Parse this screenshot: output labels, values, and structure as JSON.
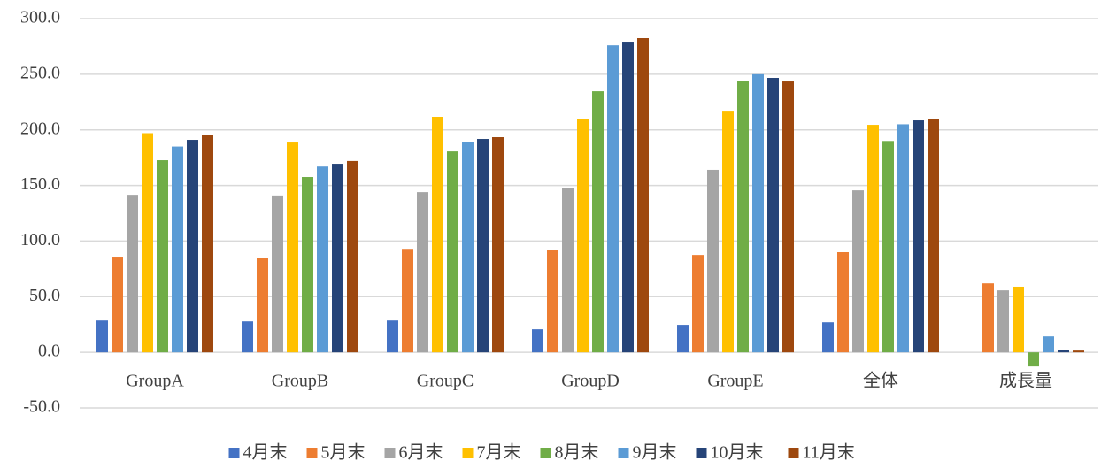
{
  "chart_data": {
    "type": "bar",
    "categories": [
      "GroupA",
      "GroupB",
      "GroupC",
      "GroupD",
      "GroupE",
      "全体",
      "成長量"
    ],
    "series": [
      {
        "name": "4月末",
        "color": "#4472c4",
        "values": [
          28.6,
          27.8,
          28.6,
          20.7,
          24.7,
          27.0,
          null
        ]
      },
      {
        "name": "5月末",
        "color": "#ed7d31",
        "values": [
          86.0,
          85.0,
          93.0,
          92.0,
          87.5,
          90.0,
          62.0
        ]
      },
      {
        "name": "6月末",
        "color": "#a5a5a5",
        "values": [
          141.6,
          141.0,
          144.0,
          148.0,
          164.0,
          145.6,
          55.7
        ]
      },
      {
        "name": "7月末",
        "color": "#ffc000",
        "values": [
          197.0,
          188.6,
          211.7,
          210.0,
          216.4,
          204.5,
          59.0
        ]
      },
      {
        "name": "8月末",
        "color": "#70ad47",
        "values": [
          172.7,
          157.6,
          180.6,
          234.7,
          244.0,
          190.0,
          -12.7
        ]
      },
      {
        "name": "9月末",
        "color": "#5b9bd5",
        "values": [
          185.0,
          167.0,
          189.0,
          276.0,
          250.0,
          205.0,
          14.3
        ]
      },
      {
        "name": "10月末",
        "color": "#264478",
        "values": [
          191.0,
          169.5,
          191.8,
          278.5,
          246.7,
          208.5,
          2.4
        ]
      },
      {
        "name": "11月末",
        "color": "#9e480e",
        "values": [
          195.7,
          172.0,
          193.4,
          282.5,
          243.5,
          210.0,
          1.6
        ]
      }
    ],
    "ylim": [
      -50,
      300
    ],
    "yticks": [
      {
        "value": -50,
        "label": "-50.0"
      },
      {
        "value": 0,
        "label": "0.0"
      },
      {
        "value": 50,
        "label": "50.0"
      },
      {
        "value": 100,
        "label": "100.0"
      },
      {
        "value": 150,
        "label": "150.0"
      },
      {
        "value": 200,
        "label": "200.0"
      },
      {
        "value": 250,
        "label": "250.0"
      },
      {
        "value": 300,
        "label": "300.0"
      }
    ],
    "grid": true,
    "legend": "bottom"
  }
}
